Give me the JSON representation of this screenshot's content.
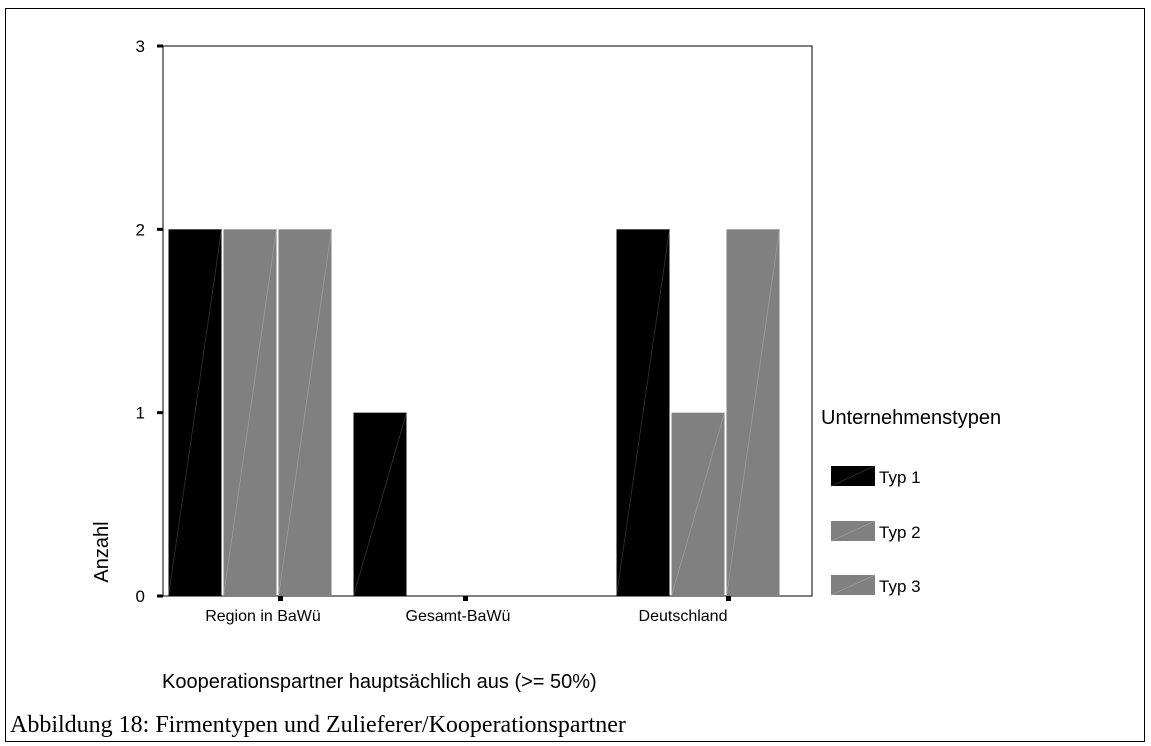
{
  "caption": "Abbildung 18: Firmentypen und Zulieferer/Kooperationspartner",
  "chart_data": {
    "type": "bar",
    "categories": [
      "Region in BaWü",
      "Gesamt-BaWü",
      "Deutschland"
    ],
    "series": [
      {
        "name": "Typ 1",
        "values": [
          2,
          1,
          2
        ],
        "color": "#000000"
      },
      {
        "name": "Typ 2",
        "values": [
          2,
          0,
          1
        ],
        "color": "#808080"
      },
      {
        "name": "Typ 3",
        "values": [
          2,
          0,
          2
        ],
        "color": "#808080"
      }
    ],
    "title": "",
    "xlabel": "Kooperationspartner hauptsächlich aus  (>= 50%)",
    "ylabel": "Anzahl",
    "ylim": [
      0,
      3
    ],
    "yticks": [
      "0",
      "1",
      "2",
      "3"
    ],
    "legend_title": "Unternehmenstypen",
    "legend_position": "right",
    "grid": false
  }
}
